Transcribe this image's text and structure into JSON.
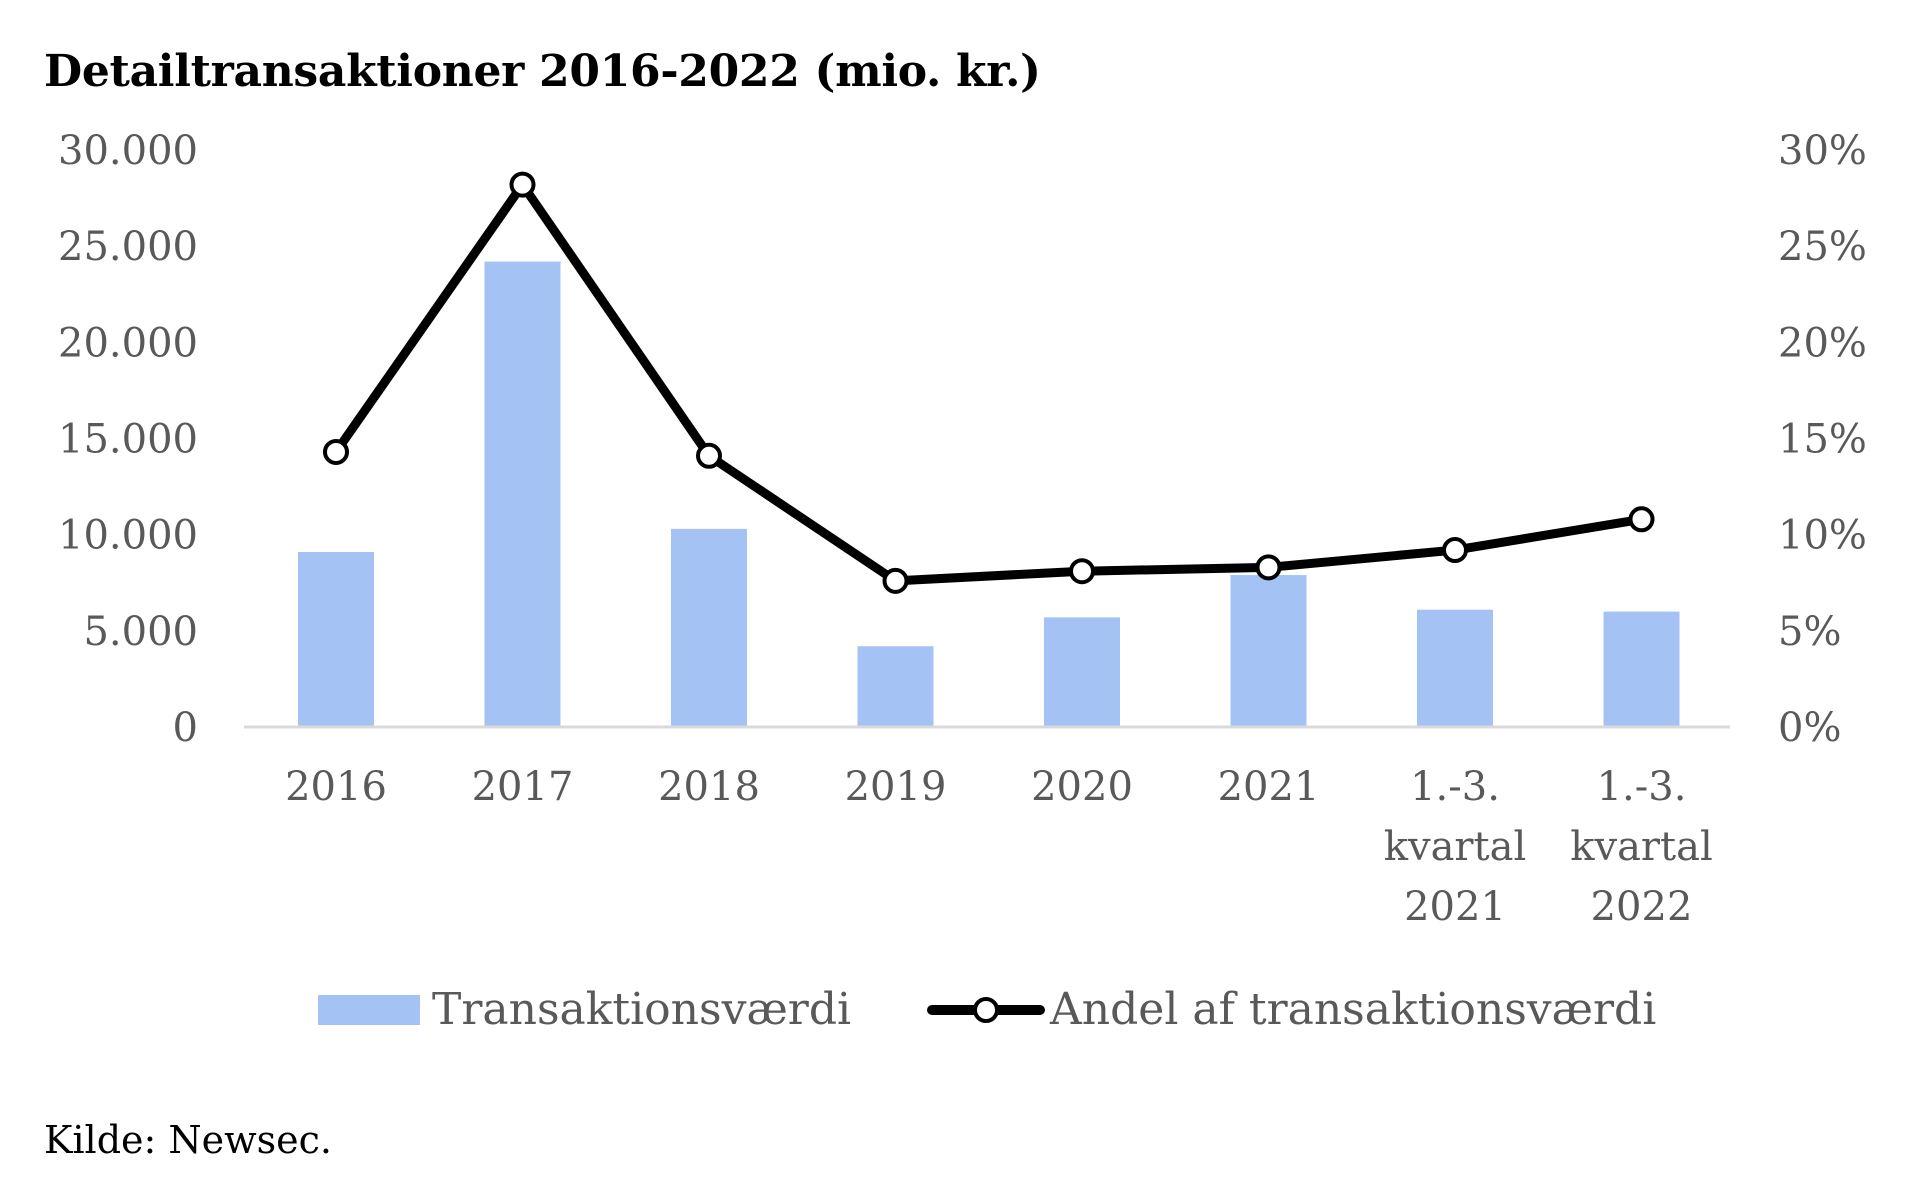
{
  "chart_data": {
    "type": "bar",
    "title": "Detailtransaktioner 2016-2022 (mio. kr.)",
    "categories": [
      [
        "2016"
      ],
      [
        "2017"
      ],
      [
        "2018"
      ],
      [
        "2019"
      ],
      [
        "2020"
      ],
      [
        "2021"
      ],
      [
        "1.-3.",
        "kvartal",
        "2021"
      ],
      [
        "1.-3.",
        "kvartal",
        "2022"
      ]
    ],
    "y_left": {
      "range": [
        0,
        30000
      ],
      "ticks": [
        0,
        5000,
        10000,
        15000,
        20000,
        25000,
        30000
      ],
      "tick_labels": [
        "0",
        "5.000",
        "10.000",
        "15.000",
        "20.000",
        "25.000",
        "30.000"
      ]
    },
    "y_right": {
      "range": [
        0,
        0.3
      ],
      "ticks": [
        0,
        0.05,
        0.1,
        0.15,
        0.2,
        0.25,
        0.3
      ],
      "tick_labels": [
        "0%",
        "5%",
        "10%",
        "15%",
        "20%",
        "25%",
        "30%"
      ]
    },
    "series": [
      {
        "name": "Transaktionsværdi",
        "type": "bar",
        "axis": "left",
        "color": "#a4c2f4",
        "values": [
          9100,
          24200,
          10300,
          4200,
          5700,
          7900,
          6100,
          6000
        ]
      },
      {
        "name": "Andel af transaktionsværdi",
        "type": "line",
        "axis": "right",
        "color": "#000000",
        "marker": "open-circle",
        "values": [
          0.143,
          0.282,
          0.141,
          0.076,
          0.081,
          0.083,
          0.092,
          0.108
        ]
      }
    ],
    "grid": false,
    "legend_position": "bottom"
  },
  "footer": {
    "source": "Kilde: Newsec."
  }
}
